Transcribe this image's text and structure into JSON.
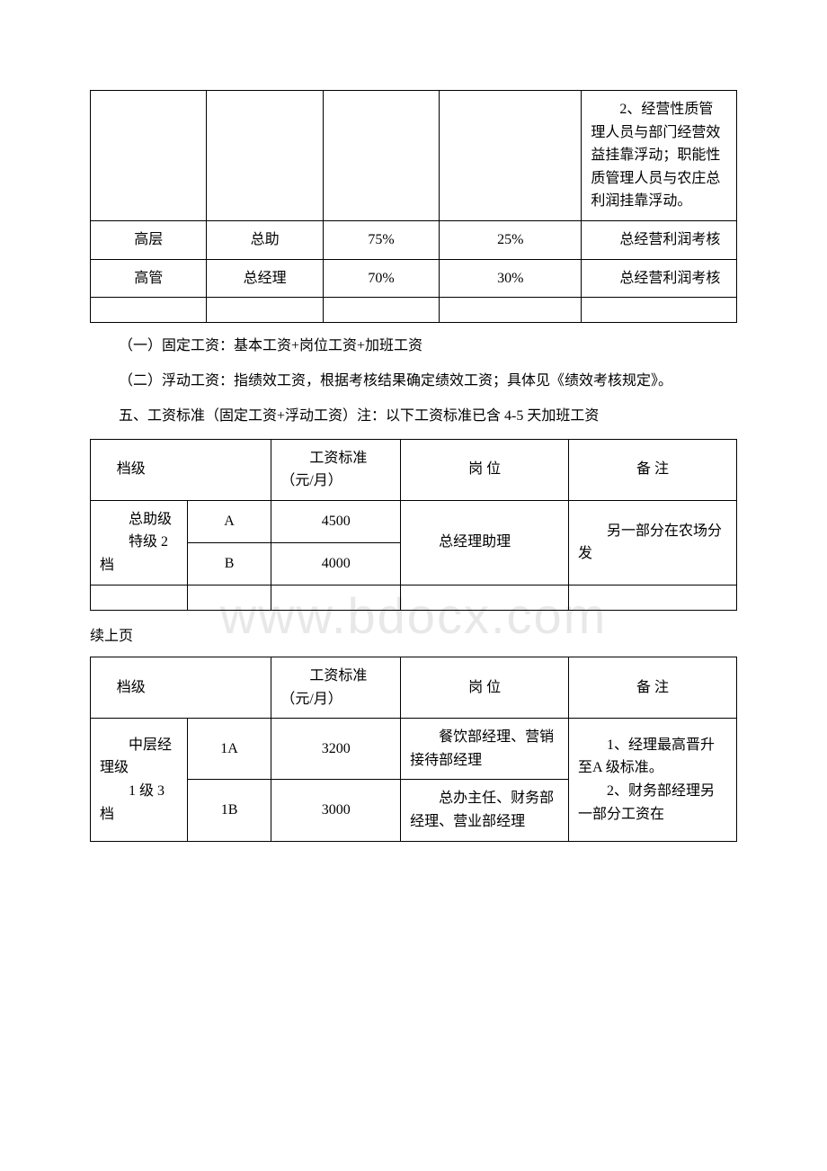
{
  "watermark": "www.bdocx.com",
  "table1": {
    "rows": [
      {
        "col1": "",
        "col2": "",
        "col3": "",
        "col4": "",
        "col5": "　　2、经营性质管理人员与部门经营效益挂靠浮动；职能性质管理人员与农庄总利润挂靠浮动。"
      },
      {
        "col1": "高层",
        "col2": "总助",
        "col3": "75%",
        "col4": "25%",
        "col5": "　　总经营利润考核"
      },
      {
        "col1": "高管",
        "col2": "总经理",
        "col3": "70%",
        "col4": "30%",
        "col5": "　　总经营利润考核"
      }
    ]
  },
  "paragraphs": {
    "p1": "（一）固定工资：基本工资+岗位工资+加班工资",
    "p2": "（二）浮动工资：指绩效工资，根据考核结果确定绩效工资；具体见《绩效考核规定》。",
    "p3": "五、工资标准（固定工资+浮动工资）注：以下工资标准已含 4-5 天加班工资"
  },
  "table2": {
    "headers": {
      "level": "档级",
      "wage": "　　工资标准（元/月）",
      "position": "岗 位",
      "remark": "备 注"
    },
    "group": {
      "left_line1": "　　总助级",
      "left_line2": "　　特级 2档",
      "rowA": {
        "code": "A",
        "wage": "4500"
      },
      "rowB": {
        "code": "B",
        "wage": "4000"
      },
      "position": "　　总经理助理",
      "remark": "　　另一部分在农场分发"
    }
  },
  "continue_label": "续上页",
  "table3": {
    "headers": {
      "level": "档级",
      "wage": "　　工资标准（元/月）",
      "position": "岗 位",
      "remark": "备 注"
    },
    "group": {
      "left_line1": "　　中层经理级",
      "left_line2": "　　1 级 3 档",
      "row1": {
        "code": "1A",
        "wage": "3200",
        "position": "　　餐饮部经理、营销接待部经理"
      },
      "row2": {
        "code": "1B",
        "wage": "3000",
        "position": "　　总办主任、财务部经理、营业部经理"
      },
      "remark": "　　1、经理最高晋升至A 级标准。\n　　2、财务部经理另一部分工资在"
    }
  },
  "styles": {
    "background_color": "#ffffff",
    "text_color": "#000000",
    "border_color": "#000000",
    "watermark_color": "#e8e8e8",
    "font_family": "SimSun",
    "body_fontsize": 16,
    "watermark_fontsize": 56
  }
}
